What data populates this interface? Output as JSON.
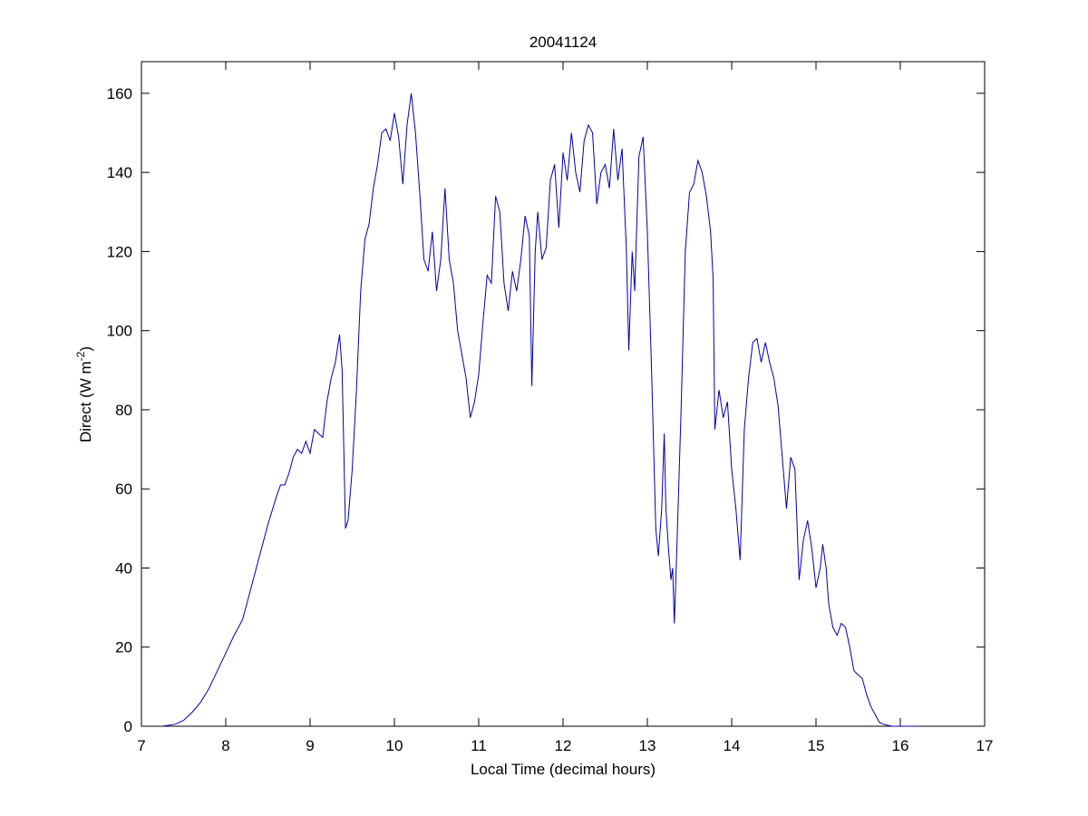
{
  "chart_data": {
    "type": "line",
    "title": "20041124",
    "xlabel": "Local Time (decimal hours)",
    "ylabel": [
      "Direct (W m",
      "-2",
      ")"
    ],
    "xlim": [
      7,
      17
    ],
    "xticks": [
      7,
      8,
      9,
      10,
      11,
      12,
      13,
      14,
      15,
      16,
      17
    ],
    "ylim": [
      0,
      168
    ],
    "yticks": [
      0,
      20,
      40,
      60,
      80,
      100,
      120,
      140,
      160
    ],
    "color": "#0000aa",
    "x": [
      7.25,
      7.4,
      7.5,
      7.6,
      7.7,
      7.8,
      7.9,
      8.0,
      8.1,
      8.2,
      8.3,
      8.4,
      8.5,
      8.6,
      8.65,
      8.7,
      8.75,
      8.8,
      8.85,
      8.9,
      8.95,
      9.0,
      9.05,
      9.1,
      9.15,
      9.2,
      9.25,
      9.3,
      9.35,
      9.38,
      9.42,
      9.45,
      9.5,
      9.55,
      9.6,
      9.65,
      9.7,
      9.75,
      9.8,
      9.85,
      9.9,
      9.95,
      10.0,
      10.05,
      10.1,
      10.15,
      10.2,
      10.25,
      10.3,
      10.35,
      10.4,
      10.45,
      10.5,
      10.55,
      10.6,
      10.65,
      10.7,
      10.75,
      10.8,
      10.85,
      10.9,
      10.95,
      11.0,
      11.05,
      11.1,
      11.15,
      11.2,
      11.25,
      11.3,
      11.35,
      11.4,
      11.45,
      11.5,
      11.55,
      11.6,
      11.63,
      11.67,
      11.7,
      11.75,
      11.8,
      11.85,
      11.9,
      11.95,
      12.0,
      12.05,
      12.1,
      12.15,
      12.2,
      12.25,
      12.3,
      12.35,
      12.4,
      12.45,
      12.5,
      12.55,
      12.6,
      12.65,
      12.7,
      12.75,
      12.78,
      12.82,
      12.85,
      12.9,
      12.95,
      13.0,
      13.05,
      13.1,
      13.13,
      13.17,
      13.2,
      13.22,
      13.25,
      13.28,
      13.3,
      13.32,
      13.35,
      13.4,
      13.45,
      13.5,
      13.55,
      13.6,
      13.65,
      13.7,
      13.75,
      13.78,
      13.8,
      13.85,
      13.9,
      13.95,
      14.0,
      14.05,
      14.1,
      14.15,
      14.2,
      14.25,
      14.3,
      14.35,
      14.4,
      14.45,
      14.5,
      14.55,
      14.6,
      14.65,
      14.7,
      14.75,
      14.8,
      14.85,
      14.9,
      14.95,
      15.0,
      15.05,
      15.08,
      15.12,
      15.15,
      15.2,
      15.25,
      15.3,
      15.35,
      15.4,
      15.45,
      15.5,
      15.55,
      15.6,
      15.65,
      15.7,
      15.75,
      15.8,
      15.9,
      16.2
    ],
    "values": [
      0,
      0.5,
      1.5,
      3.5,
      6,
      9.5,
      14,
      18.5,
      23,
      27,
      35,
      43,
      51,
      58,
      61,
      61,
      64,
      68,
      70,
      69,
      72,
      69,
      75,
      74,
      73,
      82,
      88,
      92,
      99,
      90,
      50,
      52,
      65,
      85,
      110,
      123,
      127,
      136,
      142,
      150,
      151,
      148,
      155,
      149,
      137,
      152,
      160,
      150,
      135,
      118,
      115,
      125,
      110,
      118,
      136,
      118,
      112,
      100,
      94,
      88,
      78,
      82,
      89,
      102,
      114,
      112,
      134,
      130,
      112,
      105,
      115,
      110,
      118,
      129,
      124,
      86,
      120,
      130,
      118,
      121,
      138,
      142,
      126,
      145,
      138,
      150,
      140,
      135,
      148,
      152,
      150,
      132,
      140,
      142,
      136,
      151,
      138,
      146,
      121,
      95,
      120,
      110,
      144,
      149,
      125,
      90,
      50,
      43,
      55,
      74,
      55,
      45,
      37,
      40,
      26,
      45,
      80,
      120,
      135,
      137,
      143,
      140,
      134,
      125,
      113,
      75,
      85,
      78,
      82,
      65,
      55,
      42,
      75,
      88,
      97,
      98,
      92,
      97,
      92,
      88,
      81,
      68,
      55,
      68,
      65,
      37,
      47,
      52,
      45,
      35,
      40,
      46,
      40,
      31,
      25,
      23,
      26,
      25,
      20,
      14,
      13,
      12,
      8,
      5,
      3,
      1,
      0.5,
      0,
      0
    ]
  }
}
